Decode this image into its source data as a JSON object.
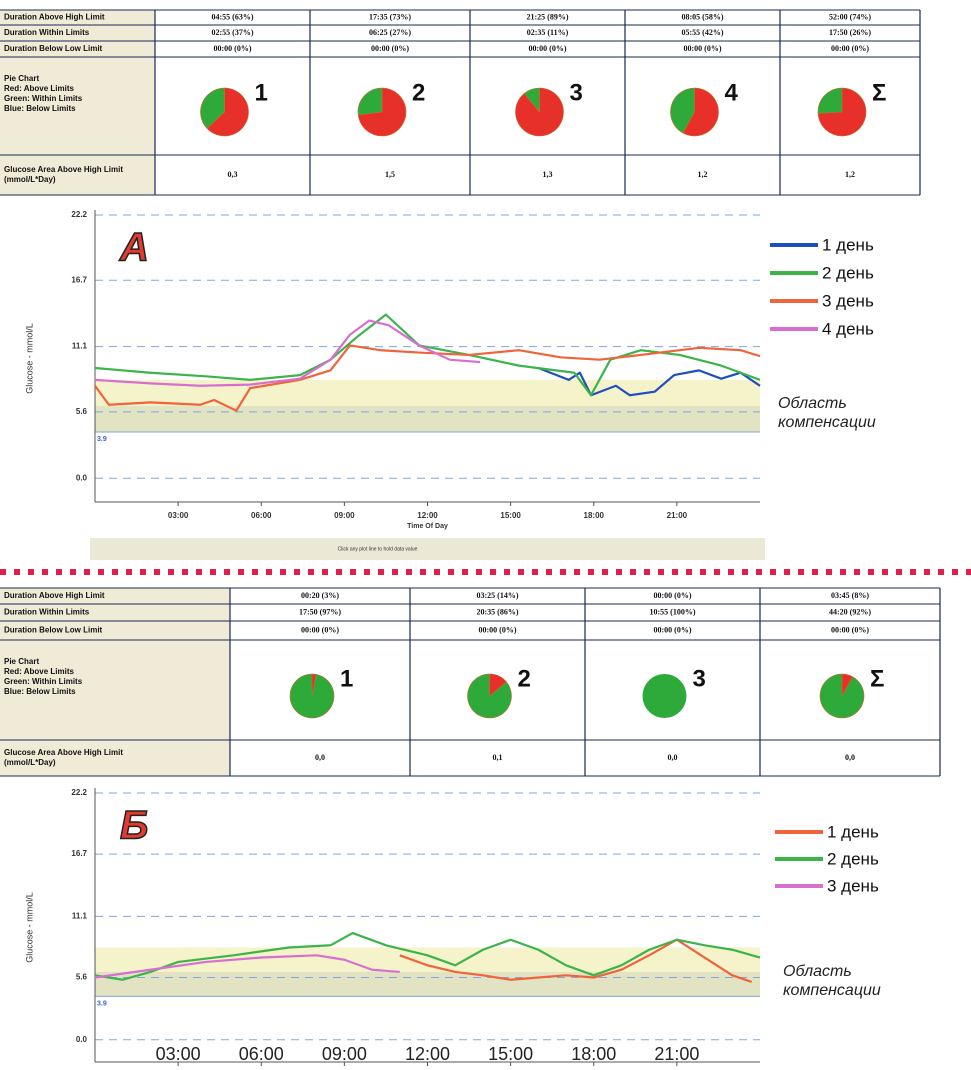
{
  "tables": [
    {
      "rows": [
        {
          "label": "Duration Above High Limit",
          "cells": [
            "04:55 (63%)",
            "17:35 (73%)",
            "21:25 (89%)",
            "08:05 (58%)",
            "52:00 (74%)"
          ]
        },
        {
          "label": "Duration Within Limits",
          "cells": [
            "02:55 (37%)",
            "06:25 (27%)",
            "02:35 (11%)",
            "05:55 (42%)",
            "17:50 (26%)"
          ]
        },
        {
          "label": "Duration Below Low Limit",
          "cells": [
            "00:00 (0%)",
            "00:00 (0%)",
            "00:00 (0%)",
            "00:00 (0%)",
            "00:00 (0%)"
          ]
        },
        {
          "label": [
            "Pie Chart",
            "Red: Above Limits",
            "Green: Within Limits",
            "Blue: Below Limits"
          ]
        },
        {
          "label": [
            "Glucose Area Above High Limit",
            "(mmol/L*Day)"
          ],
          "cells": [
            "0,3",
            "1,5",
            "1,3",
            "1,2",
            "1,2"
          ]
        }
      ]
    },
    {
      "rows": [
        {
          "label": "Duration Above High Limit",
          "cells": [
            "00:20 (3%)",
            "03:25 (14%)",
            "00:00 (0%)",
            "03:45 (8%)"
          ]
        },
        {
          "label": "Duration Within Limits",
          "cells": [
            "17:50 (97%)",
            "20:35 (86%)",
            "10:55 (100%)",
            "44:20 (92%)"
          ]
        },
        {
          "label": "Duration Below Low Limit",
          "cells": [
            "00:00 (0%)",
            "00:00 (0%)",
            "00:00 (0%)",
            "00:00 (0%)"
          ]
        },
        {
          "label": [
            "Pie Chart",
            "Red: Above Limits",
            "Green: Within Limits",
            "Blue: Below Limits"
          ]
        },
        {
          "label": [
            "Glucose Area Above High Limit",
            "(mmol/L*Day)"
          ],
          "cells": [
            "0,0",
            "0,1",
            "0,0",
            "0,0"
          ]
        }
      ]
    }
  ],
  "chart_data": [
    {
      "type": "pie",
      "title": "1",
      "values": [
        63,
        37,
        0
      ],
      "colors": [
        "#e8302a",
        "#2eaa3a",
        "#2a4fd0"
      ]
    },
    {
      "type": "pie",
      "title": "2",
      "values": [
        73,
        27,
        0
      ],
      "colors": [
        "#e8302a",
        "#2eaa3a",
        "#2a4fd0"
      ]
    },
    {
      "type": "pie",
      "title": "3",
      "values": [
        89,
        11,
        0
      ],
      "colors": [
        "#e8302a",
        "#2eaa3a",
        "#2a4fd0"
      ]
    },
    {
      "type": "pie",
      "title": "4",
      "values": [
        58,
        42,
        0
      ],
      "colors": [
        "#e8302a",
        "#2eaa3a",
        "#2a4fd0"
      ]
    },
    {
      "type": "pie",
      "title": "Σ",
      "values": [
        74,
        26,
        0
      ],
      "colors": [
        "#e8302a",
        "#2eaa3a",
        "#2a4fd0"
      ]
    },
    {
      "type": "line",
      "title": "А",
      "ylabel": "Glucose - mmol/L",
      "xlabel": "Time Of Day",
      "note": "Click any plot line to hold data value",
      "xlim": [
        0,
        24
      ],
      "xticks": [
        {
          "value": 3,
          "label": "03:00"
        },
        {
          "value": 6,
          "label": "06:00"
        },
        {
          "value": 9,
          "label": "09:00"
        },
        {
          "value": 12,
          "label": "12:00"
        },
        {
          "value": 15,
          "label": "15:00"
        },
        {
          "value": 18,
          "label": "18:00"
        },
        {
          "value": 21,
          "label": "21:00"
        }
      ],
      "ylim": [
        -2,
        22.2
      ],
      "yticks": [
        {
          "value": 0,
          "label": "0.0"
        },
        5.6,
        11.1,
        16.7,
        22.2
      ],
      "low_limit": {
        "value": 3.9,
        "label": "3.9"
      },
      "band": [
        3.9,
        8.3
      ],
      "annotation": [
        "Область",
        "компенсации"
      ],
      "grid": true,
      "series": [
        {
          "name": "1 день",
          "color": "#1f4fbf",
          "x": [
            16,
            17.1,
            17.5,
            17.9,
            18.8,
            19.3,
            20.2,
            20.9,
            21.8,
            22.6,
            23.3,
            24
          ],
          "values": [
            9.3,
            8.3,
            8.9,
            7.0,
            7.8,
            7.0,
            7.3,
            8.7,
            9.1,
            8.4,
            8.9,
            7.8
          ]
        },
        {
          "name": "2 день",
          "color": "#3cb44a",
          "x": [
            0,
            2,
            4,
            5.6,
            7.4,
            8.5,
            9.5,
            10.5,
            11.7,
            13.5,
            15.3,
            17.3,
            17.9,
            18.6,
            19.7,
            21.1,
            22.6,
            24
          ],
          "values": [
            9.3,
            8.9,
            8.6,
            8.3,
            8.7,
            10.0,
            12.0,
            13.8,
            11.2,
            10.4,
            9.5,
            8.9,
            7.0,
            10.0,
            10.8,
            10.4,
            9.5,
            8.3
          ]
        },
        {
          "name": "3 день",
          "color": "#f0643c",
          "x": [
            0,
            0.5,
            2,
            3.8,
            4.3,
            5.1,
            5.6,
            7.4,
            8.5,
            9.2,
            10.3,
            11.7,
            13.5,
            15.3,
            16.8,
            18.2,
            19.7,
            21.8,
            23.3,
            24
          ],
          "values": [
            7.8,
            6.2,
            6.4,
            6.2,
            6.6,
            5.7,
            7.6,
            8.3,
            9.1,
            11.2,
            10.8,
            10.6,
            10.4,
            10.8,
            10.2,
            10.0,
            10.4,
            11.0,
            10.8,
            10.3
          ]
        },
        {
          "name": "4 день",
          "color": "#d86fd0",
          "x": [
            0,
            2,
            3.8,
            5.6,
            7.4,
            8.5,
            9.2,
            9.9,
            10.6,
            11.7,
            12.8,
            13.9
          ],
          "values": [
            8.3,
            8.0,
            7.8,
            7.9,
            8.4,
            10.0,
            12.1,
            13.3,
            12.9,
            11.2,
            10.0,
            9.8
          ]
        }
      ]
    },
    {
      "type": "pie",
      "title": "1",
      "values": [
        3,
        97,
        0
      ],
      "colors": [
        "#e8302a",
        "#2eaa3a",
        "#2a4fd0"
      ]
    },
    {
      "type": "pie",
      "title": "2",
      "values": [
        14,
        86,
        0
      ],
      "colors": [
        "#e8302a",
        "#2eaa3a",
        "#2a4fd0"
      ]
    },
    {
      "type": "pie",
      "title": "3",
      "values": [
        0,
        100,
        0
      ],
      "colors": [
        "#e8302a",
        "#2eaa3a",
        "#2a4fd0"
      ]
    },
    {
      "type": "pie",
      "title": "Σ",
      "values": [
        8,
        92,
        0
      ],
      "colors": [
        "#e8302a",
        "#2eaa3a",
        "#2a4fd0"
      ]
    },
    {
      "type": "line",
      "title": "Б",
      "ylabel": "Glucose - mmol/L",
      "xlim": [
        0,
        24
      ],
      "xticks": [
        {
          "value": 3,
          "label": "03:00"
        },
        {
          "value": 6,
          "label": "06:00"
        },
        {
          "value": 9,
          "label": "09:00"
        },
        {
          "value": 12,
          "label": "12:00"
        },
        {
          "value": 15,
          "label": "15:00"
        },
        {
          "value": 18,
          "label": "18:00"
        },
        {
          "value": 21,
          "label": "21:00"
        }
      ],
      "ylim": [
        -2,
        22.2
      ],
      "yticks": [
        {
          "value": 0,
          "label": "0.0"
        },
        5.6,
        11.1,
        16.7,
        22.2
      ],
      "low_limit": {
        "value": 3.9,
        "label": "3.9"
      },
      "band": [
        3.9,
        8.3
      ],
      "annotation": [
        "Область",
        "компенсации"
      ],
      "grid": true,
      "series": [
        {
          "name": "1 день",
          "color": "#f0643c",
          "x": [
            11,
            12,
            13,
            14,
            15,
            16,
            17,
            18,
            19,
            20,
            21,
            22,
            23,
            23.7
          ],
          "values": [
            7.6,
            6.7,
            6.1,
            5.8,
            5.4,
            5.6,
            5.8,
            5.6,
            6.3,
            7.6,
            9.0,
            7.4,
            5.8,
            5.2
          ]
        },
        {
          "name": "2 день",
          "color": "#3cb44a",
          "x": [
            0,
            1,
            2,
            3,
            5,
            7,
            8.5,
            9.3,
            10.5,
            12,
            13,
            14,
            15,
            16,
            17,
            18,
            19,
            20,
            21,
            22,
            23,
            24
          ],
          "values": [
            5.8,
            5.4,
            6.1,
            7.0,
            7.6,
            8.3,
            8.5,
            9.6,
            8.5,
            7.6,
            6.7,
            8.1,
            9.0,
            8.1,
            6.7,
            5.8,
            6.7,
            8.1,
            9.0,
            8.5,
            8.1,
            7.4
          ]
        },
        {
          "name": "3 день",
          "color": "#d86fd0",
          "x": [
            0,
            2,
            4,
            6,
            8,
            9,
            10,
            11
          ],
          "values": [
            5.6,
            6.3,
            7.0,
            7.4,
            7.6,
            7.2,
            6.3,
            6.1
          ]
        }
      ]
    }
  ]
}
